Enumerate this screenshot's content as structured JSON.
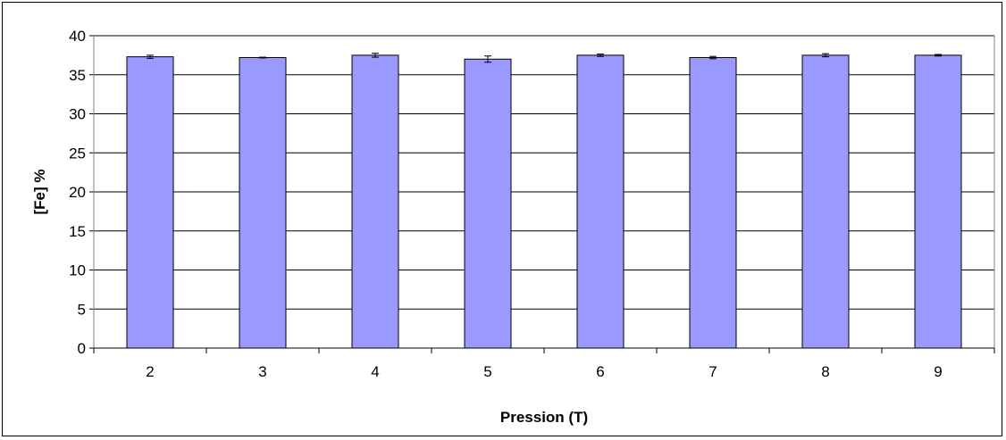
{
  "chart_data": {
    "type": "bar",
    "title": "",
    "xlabel": "Pression (T)",
    "ylabel": "[Fe] %",
    "categories": [
      "2",
      "3",
      "4",
      "5",
      "6",
      "7",
      "8",
      "9"
    ],
    "values": [
      37.3,
      37.2,
      37.5,
      37.0,
      37.5,
      37.2,
      37.5,
      37.5
    ],
    "error": [
      0.2,
      0.05,
      0.25,
      0.4,
      0.15,
      0.15,
      0.2,
      0.1
    ],
    "ylim": [
      0,
      40
    ],
    "yticks": [
      0,
      5,
      10,
      15,
      20,
      25,
      30,
      35,
      40
    ],
    "grid": true,
    "legend": "none",
    "colors": {
      "bar_fill": "#9999ff",
      "bar_stroke": "#000000",
      "gridline": "#000000",
      "axis": "#808080"
    }
  }
}
